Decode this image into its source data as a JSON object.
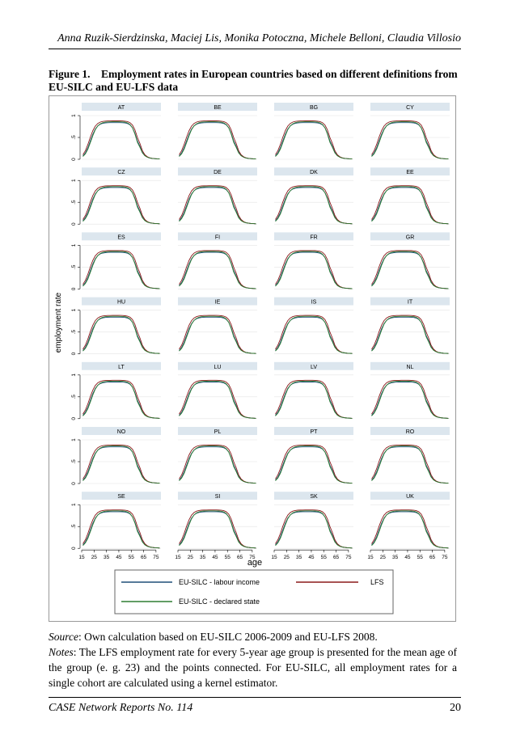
{
  "header": {
    "authors": "Anna Ruzik-Sierdzinska, Maciej Lis, Monika Potoczna, Michele Belloni, Claudia Villosio"
  },
  "figure": {
    "label": "Figure 1.",
    "caption": "Employment rates in European countries based on different definitions from EU-SILC and EU-LFS data"
  },
  "chart_data": {
    "type": "line",
    "xlabel": "age",
    "ylabel": "employment rate",
    "xlim": [
      15,
      79
    ],
    "ylim": [
      0,
      1
    ],
    "x_ticks": [
      "15",
      "25",
      "35",
      "45",
      "55",
      "65",
      "75"
    ],
    "y_ticks": [
      "0",
      ".5",
      "1"
    ],
    "panels": [
      "AT",
      "BE",
      "BG",
      "CY",
      "CZ",
      "DE",
      "DK",
      "EE",
      "ES",
      "FI",
      "FR",
      "GR",
      "HU",
      "IE",
      "IS",
      "IT",
      "LT",
      "LU",
      "LV",
      "NL",
      "NO",
      "PL",
      "PT",
      "RO",
      "SE",
      "SI",
      "SK",
      "UK"
    ],
    "legend": [
      {
        "name": "EU-SILC - labour income",
        "color": "#1f4e79"
      },
      {
        "name": "LFS",
        "color": "#8b1a1a"
      },
      {
        "name": "EU-SILC - declared state",
        "color": "#2e7d32"
      }
    ]
  },
  "source": {
    "label": "Source",
    "text": ": Own calculation based on EU-SILC 2006-2009 and EU-LFS 2008."
  },
  "notes": {
    "label": "Notes",
    "text": ": The LFS employment rate for every 5-year age group is presented for the mean age of the group (e. g. 23) and the points connected. For EU-SILC, all employment rates for a single cohort are calculated using a kernel estimator."
  },
  "footer": {
    "series": "CASE Network Reports No. 114",
    "page": "20"
  }
}
